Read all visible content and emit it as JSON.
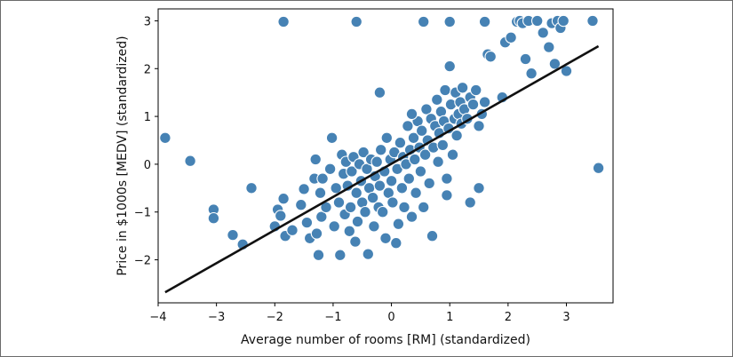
{
  "chart_data": {
    "type": "scatter",
    "xlabel": "Average number of rooms [RM] (standardized)",
    "ylabel": "Price in $1000s [MEDV] (standardized)",
    "xlim": [
      -4.0,
      3.8
    ],
    "ylim": [
      -2.9,
      3.25
    ],
    "x_ticks": [
      -4,
      -3,
      -2,
      -1,
      0,
      1,
      2,
      3
    ],
    "y_ticks": [
      -2,
      -1,
      0,
      1,
      2,
      3
    ],
    "x_tick_labels": [
      "−4",
      "−3",
      "−2",
      "−1",
      "0",
      "1",
      "2",
      "3"
    ],
    "y_tick_labels": [
      "−2",
      "−1",
      "0",
      "1",
      "2",
      "3"
    ],
    "grid": false,
    "series": [
      {
        "kind": "scatter",
        "color": "#4682b4",
        "edgecolor": "#ffffff",
        "points": [
          [
            -3.88,
            0.55
          ],
          [
            -3.45,
            0.07
          ],
          [
            -3.05,
            -0.95
          ],
          [
            -3.05,
            -1.13
          ],
          [
            -2.72,
            -1.48
          ],
          [
            -2.55,
            -1.68
          ],
          [
            -2.4,
            -0.5
          ],
          [
            -2.0,
            -1.3
          ],
          [
            -1.95,
            -0.95
          ],
          [
            -1.9,
            -1.08
          ],
          [
            -1.85,
            -0.72
          ],
          [
            -1.82,
            -1.5
          ],
          [
            -1.7,
            -1.38
          ],
          [
            -1.55,
            -0.85
          ],
          [
            -1.5,
            -0.52
          ],
          [
            -1.45,
            -1.22
          ],
          [
            -1.4,
            -1.55
          ],
          [
            -1.32,
            -0.3
          ],
          [
            -1.3,
            0.1
          ],
          [
            -1.28,
            -1.45
          ],
          [
            -1.25,
            -1.9
          ],
          [
            -1.22,
            -0.6
          ],
          [
            -1.2,
            -1.1
          ],
          [
            -1.18,
            -0.3
          ],
          [
            -1.12,
            -0.9
          ],
          [
            -1.05,
            -0.1
          ],
          [
            -1.02,
            0.55
          ],
          [
            -0.98,
            -1.3
          ],
          [
            -0.95,
            -0.5
          ],
          [
            -0.9,
            -0.8
          ],
          [
            -0.88,
            -1.9
          ],
          [
            -0.85,
            0.2
          ],
          [
            -0.82,
            -0.2
          ],
          [
            -0.8,
            -1.05
          ],
          [
            -0.78,
            0.05
          ],
          [
            -0.75,
            -0.45
          ],
          [
            -0.72,
            -1.4
          ],
          [
            -0.7,
            -0.9
          ],
          [
            -0.68,
            -0.15
          ],
          [
            -0.65,
            0.15
          ],
          [
            -0.62,
            -1.62
          ],
          [
            -0.6,
            -0.6
          ],
          [
            -0.58,
            -1.2
          ],
          [
            -0.55,
            0.0
          ],
          [
            -0.52,
            -0.35
          ],
          [
            -0.5,
            -0.8
          ],
          [
            -0.48,
            0.25
          ],
          [
            -0.45,
            -1.0
          ],
          [
            -0.42,
            -0.1
          ],
          [
            -0.4,
            -1.88
          ],
          [
            -0.38,
            -0.5
          ],
          [
            -0.35,
            0.1
          ],
          [
            -0.32,
            -0.7
          ],
          [
            -0.3,
            -1.3
          ],
          [
            -0.28,
            -0.25
          ],
          [
            -0.25,
            0.05
          ],
          [
            -0.22,
            -0.9
          ],
          [
            -0.2,
            -0.45
          ],
          [
            -0.18,
            0.3
          ],
          [
            -0.15,
            -1.0
          ],
          [
            -0.12,
            -0.15
          ],
          [
            -0.1,
            -1.55
          ],
          [
            -0.08,
            0.55
          ],
          [
            -0.05,
            -0.6
          ],
          [
            -0.02,
            0.1
          ],
          [
            0.0,
            -0.35
          ],
          [
            0.02,
            -0.8
          ],
          [
            0.05,
            0.25
          ],
          [
            0.08,
            -1.65
          ],
          [
            0.1,
            -0.1
          ],
          [
            0.12,
            -1.25
          ],
          [
            0.15,
            0.45
          ],
          [
            0.18,
            -0.5
          ],
          [
            0.2,
            0.15
          ],
          [
            0.22,
            -0.9
          ],
          [
            0.25,
            0.0
          ],
          [
            0.28,
            0.8
          ],
          [
            0.3,
            -0.3
          ],
          [
            0.32,
            0.3
          ],
          [
            0.35,
            -1.1
          ],
          [
            0.38,
            0.55
          ],
          [
            0.4,
            0.1
          ],
          [
            0.42,
            -0.6
          ],
          [
            0.45,
            0.9
          ],
          [
            0.48,
            0.35
          ],
          [
            0.5,
            -0.15
          ],
          [
            0.52,
            0.7
          ],
          [
            0.55,
            -0.9
          ],
          [
            0.58,
            0.2
          ],
          [
            0.6,
            1.15
          ],
          [
            0.62,
            0.5
          ],
          [
            0.65,
            -0.4
          ],
          [
            0.68,
            0.95
          ],
          [
            0.7,
            -1.5
          ],
          [
            0.72,
            0.35
          ],
          [
            0.75,
            0.8
          ],
          [
            0.78,
            1.35
          ],
          [
            0.8,
            0.05
          ],
          [
            0.82,
            0.65
          ],
          [
            0.85,
            1.1
          ],
          [
            0.88,
            0.4
          ],
          [
            0.9,
            0.9
          ],
          [
            0.92,
            1.55
          ],
          [
            0.95,
            -0.3
          ],
          [
            0.98,
            0.75
          ],
          [
            1.0,
            2.05
          ],
          [
            1.02,
            1.25
          ],
          [
            1.05,
            0.2
          ],
          [
            1.08,
            0.95
          ],
          [
            1.1,
            1.5
          ],
          [
            1.12,
            0.6
          ],
          [
            1.15,
            1.05
          ],
          [
            1.18,
            1.3
          ],
          [
            1.2,
            0.85
          ],
          [
            1.22,
            1.6
          ],
          [
            1.25,
            1.15
          ],
          [
            1.3,
            0.95
          ],
          [
            1.35,
            1.4
          ],
          [
            1.4,
            1.25
          ],
          [
            1.45,
            1.55
          ],
          [
            1.5,
            -0.5
          ],
          [
            1.55,
            1.05
          ],
          [
            1.6,
            1.3
          ],
          [
            1.65,
            2.3
          ],
          [
            1.7,
            2.25
          ],
          [
            1.9,
            1.4
          ],
          [
            1.95,
            2.55
          ],
          [
            2.05,
            2.65
          ],
          [
            2.15,
            2.98
          ],
          [
            2.2,
            3.0
          ],
          [
            2.25,
            2.95
          ],
          [
            2.3,
            2.2
          ],
          [
            2.35,
            3.0
          ],
          [
            2.4,
            1.9
          ],
          [
            2.5,
            3.0
          ],
          [
            2.6,
            2.75
          ],
          [
            2.7,
            2.45
          ],
          [
            2.75,
            2.95
          ],
          [
            2.8,
            2.1
          ],
          [
            2.85,
            3.0
          ],
          [
            2.9,
            2.85
          ],
          [
            2.95,
            3.0
          ],
          [
            3.0,
            1.95
          ],
          [
            3.45,
            3.0
          ],
          [
            3.55,
            -0.08
          ],
          [
            -1.85,
            2.98
          ],
          [
            -0.6,
            2.98
          ],
          [
            0.55,
            2.98
          ],
          [
            1.0,
            2.98
          ],
          [
            1.6,
            2.98
          ],
          [
            1.35,
            -0.8
          ],
          [
            1.5,
            0.8
          ],
          [
            -0.2,
            1.5
          ],
          [
            0.35,
            1.05
          ],
          [
            0.95,
            -0.65
          ]
        ]
      },
      {
        "kind": "line",
        "color": "#111111",
        "x": [
          -3.88,
          3.55
        ],
        "y": [
          -2.68,
          2.47
        ]
      }
    ]
  }
}
